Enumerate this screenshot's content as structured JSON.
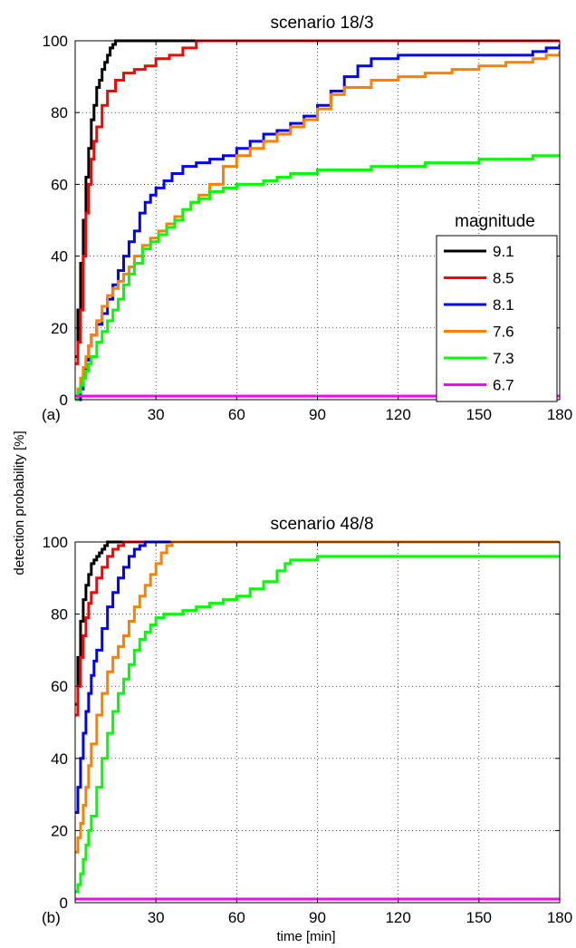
{
  "figure": {
    "ylabel": "detection probability [%]",
    "xlabel": "time [min]",
    "legend_title": "magnitude"
  },
  "chart_data": [
    {
      "type": "line",
      "panel_label": "(a)",
      "title": "scenario 18/3",
      "xlabel": "",
      "ylabel": "detection probability [%]",
      "xlim": [
        0,
        180
      ],
      "ylim": [
        0,
        100
      ],
      "xticks": [
        30,
        60,
        90,
        120,
        150,
        180
      ],
      "yticks": [
        0,
        20,
        40,
        60,
        80,
        100
      ],
      "grid": true,
      "legend": {
        "title": "magnitude",
        "placement": "right"
      },
      "series": [
        {
          "name": "9.1",
          "color": "#000000",
          "x": [
            0,
            1,
            2,
            3,
            4,
            5,
            6,
            7,
            8,
            9,
            10,
            11,
            12,
            13,
            14,
            15,
            16,
            180
          ],
          "y": [
            12,
            25,
            38,
            50,
            62,
            70,
            78,
            82,
            87,
            89,
            92,
            94,
            96,
            98,
            99,
            100,
            100,
            100
          ]
        },
        {
          "name": "8.5",
          "color": "#ff0000",
          "x": [
            0,
            1,
            2,
            3,
            4,
            5,
            6,
            7,
            8,
            10,
            12,
            15,
            18,
            22,
            26,
            30,
            35,
            40,
            45,
            180
          ],
          "y": [
            10,
            16,
            25,
            40,
            52,
            60,
            67,
            72,
            76,
            82,
            86,
            89,
            91,
            92,
            93,
            95,
            96,
            98,
            100,
            100
          ]
        },
        {
          "name": "8.1",
          "color": "#0000ff",
          "x": [
            0,
            2,
            3,
            4,
            5,
            6,
            8,
            10,
            12,
            14,
            16,
            18,
            20,
            22,
            24,
            26,
            28,
            30,
            33,
            36,
            40,
            45,
            50,
            55,
            60,
            65,
            70,
            75,
            80,
            85,
            90,
            95,
            100,
            105,
            110,
            120,
            130,
            140,
            150,
            160,
            170,
            175,
            180
          ],
          "y": [
            0,
            3,
            7,
            11,
            15,
            18,
            21,
            24,
            28,
            32,
            36,
            40,
            44,
            47,
            52,
            55,
            57,
            59,
            61,
            63,
            65,
            66,
            67,
            68,
            70,
            72,
            74,
            75,
            77,
            79,
            82,
            86,
            90,
            93,
            95,
            96,
            96,
            96,
            96,
            96,
            97,
            98,
            99
          ]
        },
        {
          "name": "7.6",
          "color": "#ff8000",
          "x": [
            0,
            1,
            2,
            3,
            4,
            5,
            6,
            8,
            10,
            12,
            14,
            16,
            18,
            20,
            22,
            25,
            28,
            31,
            34,
            37,
            40,
            43,
            46,
            50,
            55,
            60,
            65,
            70,
            75,
            80,
            85,
            90,
            95,
            100,
            110,
            120,
            130,
            140,
            150,
            160,
            170,
            175,
            180
          ],
          "y": [
            0,
            3,
            6,
            9,
            12,
            15,
            18,
            22,
            26,
            29,
            31,
            33,
            35,
            37,
            40,
            43,
            45,
            47,
            49,
            51,
            53,
            55,
            57,
            60,
            65,
            68,
            70,
            72,
            74,
            76,
            78,
            81,
            85,
            87,
            89,
            90,
            91,
            92,
            93,
            94,
            95,
            96,
            97
          ]
        },
        {
          "name": "7.3",
          "color": "#00ff00",
          "x": [
            0,
            1,
            2,
            3,
            4,
            5,
            6,
            8,
            10,
            12,
            14,
            16,
            18,
            20,
            22,
            25,
            28,
            31,
            34,
            37,
            40,
            43,
            46,
            50,
            55,
            60,
            65,
            70,
            75,
            80,
            90,
            100,
            110,
            120,
            130,
            140,
            150,
            160,
            170,
            180
          ],
          "y": [
            0,
            2,
            4,
            6,
            8,
            10,
            12,
            16,
            19,
            22,
            25,
            28,
            32,
            35,
            38,
            42,
            44,
            46,
            48,
            50,
            53,
            55,
            56,
            58,
            59,
            60,
            60,
            61,
            62,
            63,
            64,
            64,
            65,
            65,
            66,
            66,
            67,
            67,
            68,
            68
          ]
        },
        {
          "name": "6.7",
          "color": "#ff00ff",
          "x": [
            0,
            180
          ],
          "y": [
            1,
            1
          ]
        }
      ]
    },
    {
      "type": "line",
      "panel_label": "(b)",
      "title": "scenario 48/8",
      "xlabel": "time [min]",
      "ylabel": "detection probability [%]",
      "xlim": [
        0,
        180
      ],
      "ylim": [
        0,
        100
      ],
      "xticks": [
        30,
        60,
        90,
        120,
        150,
        180
      ],
      "yticks": [
        0,
        20,
        40,
        60,
        80,
        100
      ],
      "grid": true,
      "series": [
        {
          "name": "9.1",
          "color": "#000000",
          "x": [
            0,
            1,
            2,
            3,
            4,
            5,
            6,
            7,
            8,
            9,
            10,
            11,
            12,
            13,
            180
          ],
          "y": [
            55,
            68,
            78,
            84,
            88,
            91,
            94,
            95,
            96,
            97,
            98,
            99,
            100,
            100,
            100
          ]
        },
        {
          "name": "8.5",
          "color": "#ff0000",
          "x": [
            0,
            1,
            2,
            3,
            4,
            5,
            6,
            8,
            10,
            12,
            14,
            16,
            18,
            180
          ],
          "y": [
            52,
            60,
            68,
            74,
            79,
            83,
            86,
            90,
            93,
            96,
            98,
            99,
            100,
            100
          ]
        },
        {
          "name": "8.1",
          "color": "#0000ff",
          "x": [
            0,
            1,
            2,
            3,
            4,
            5,
            6,
            7,
            8,
            10,
            12,
            14,
            16,
            18,
            20,
            22,
            24,
            26,
            28,
            180
          ],
          "y": [
            25,
            32,
            40,
            47,
            53,
            58,
            63,
            67,
            70,
            76,
            82,
            86,
            90,
            93,
            96,
            98,
            99,
            100,
            100,
            100
          ]
        },
        {
          "name": "7.6",
          "color": "#ff8000",
          "x": [
            0,
            1,
            2,
            3,
            4,
            5,
            6,
            8,
            10,
            12,
            14,
            16,
            18,
            20,
            22,
            24,
            26,
            28,
            30,
            32,
            34,
            36,
            180
          ],
          "y": [
            14,
            18,
            22,
            27,
            32,
            38,
            44,
            52,
            58,
            64,
            68,
            71,
            74,
            78,
            82,
            85,
            88,
            91,
            94,
            97,
            99,
            100,
            100
          ]
        },
        {
          "name": "7.3",
          "color": "#00ff00",
          "x": [
            0,
            1,
            2,
            3,
            4,
            5,
            6,
            8,
            10,
            12,
            14,
            16,
            18,
            20,
            22,
            24,
            26,
            28,
            30,
            33,
            36,
            40,
            45,
            50,
            55,
            60,
            65,
            70,
            75,
            78,
            80,
            85,
            90,
            100,
            120,
            140,
            160,
            180
          ],
          "y": [
            3,
            5,
            8,
            12,
            16,
            20,
            24,
            32,
            40,
            47,
            53,
            58,
            62,
            66,
            70,
            73,
            75,
            77,
            79,
            80,
            80,
            81,
            82,
            83,
            84,
            85,
            87,
            89,
            92,
            94,
            95,
            95,
            96,
            96,
            96,
            96,
            96,
            96
          ]
        },
        {
          "name": "6.7",
          "color": "#ff00ff",
          "x": [
            0,
            180
          ],
          "y": [
            1,
            1
          ]
        }
      ]
    }
  ]
}
